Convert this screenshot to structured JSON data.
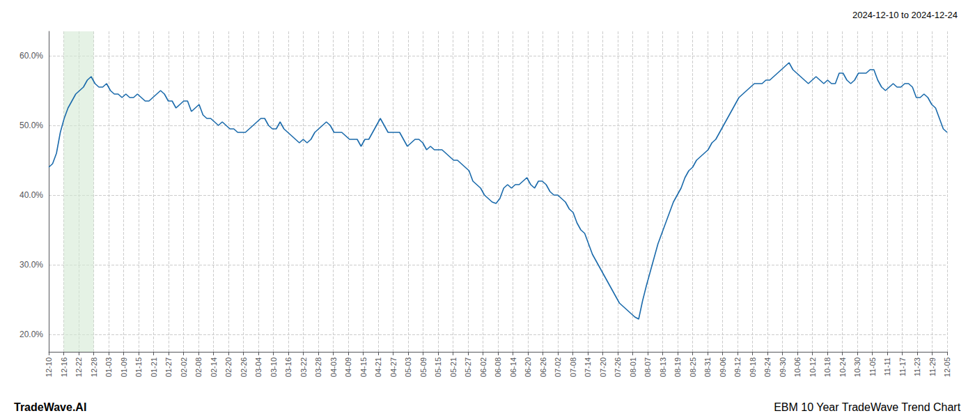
{
  "chart_data": {
    "type": "line",
    "title": "2024-12-10 to 2024-12-24",
    "annotations": [
      "TradeWave.AI",
      "EBM 10 Year TradeWave Trend Chart"
    ],
    "color": "#1a6aab",
    "grid": true,
    "shade": {
      "x": [
        1,
        3
      ],
      "color": "#d4e9d4"
    },
    "xlim": [
      0,
      60
    ],
    "xticks": [
      {
        "value": 0,
        "label": "12-10"
      },
      {
        "value": 1,
        "label": "12-16"
      },
      {
        "value": 2,
        "label": "12-22"
      },
      {
        "value": 3,
        "label": "12-28"
      },
      {
        "value": 4,
        "label": "01-03"
      },
      {
        "value": 5,
        "label": "01-09"
      },
      {
        "value": 6,
        "label": "01-15"
      },
      {
        "value": 7,
        "label": "01-21"
      },
      {
        "value": 8,
        "label": "01-27"
      },
      {
        "value": 9,
        "label": "02-02"
      },
      {
        "value": 10,
        "label": "02-08"
      },
      {
        "value": 11,
        "label": "02-14"
      },
      {
        "value": 12,
        "label": "02-20"
      },
      {
        "value": 13,
        "label": "02-26"
      },
      {
        "value": 14,
        "label": "03-04"
      },
      {
        "value": 15,
        "label": "03-10"
      },
      {
        "value": 16,
        "label": "03-16"
      },
      {
        "value": 17,
        "label": "03-22"
      },
      {
        "value": 18,
        "label": "03-28"
      },
      {
        "value": 19,
        "label": "04-03"
      },
      {
        "value": 20,
        "label": "04-09"
      },
      {
        "value": 21,
        "label": "04-15"
      },
      {
        "value": 22,
        "label": "04-21"
      },
      {
        "value": 23,
        "label": "04-27"
      },
      {
        "value": 24,
        "label": "05-03"
      },
      {
        "value": 25,
        "label": "05-09"
      },
      {
        "value": 26,
        "label": "05-15"
      },
      {
        "value": 27,
        "label": "05-21"
      },
      {
        "value": 28,
        "label": "05-27"
      },
      {
        "value": 29,
        "label": "06-02"
      },
      {
        "value": 30,
        "label": "06-08"
      },
      {
        "value": 31,
        "label": "06-14"
      },
      {
        "value": 32,
        "label": "06-20"
      },
      {
        "value": 33,
        "label": "06-26"
      },
      {
        "value": 34,
        "label": "07-02"
      },
      {
        "value": 35,
        "label": "07-08"
      },
      {
        "value": 36,
        "label": "07-14"
      },
      {
        "value": 37,
        "label": "07-20"
      },
      {
        "value": 38,
        "label": "07-26"
      },
      {
        "value": 39,
        "label": "08-01"
      },
      {
        "value": 40,
        "label": "08-07"
      },
      {
        "value": 41,
        "label": "08-13"
      },
      {
        "value": 42,
        "label": "08-19"
      },
      {
        "value": 43,
        "label": "08-25"
      },
      {
        "value": 44,
        "label": "08-31"
      },
      {
        "value": 45,
        "label": "09-06"
      },
      {
        "value": 46,
        "label": "09-12"
      },
      {
        "value": 47,
        "label": "09-18"
      },
      {
        "value": 48,
        "label": "09-24"
      },
      {
        "value": 49,
        "label": "09-30"
      },
      {
        "value": 50,
        "label": "10-06"
      },
      {
        "value": 51,
        "label": "10-12"
      },
      {
        "value": 52,
        "label": "10-18"
      },
      {
        "value": 53,
        "label": "10-24"
      },
      {
        "value": 54,
        "label": "10-30"
      },
      {
        "value": 55,
        "label": "11-05"
      },
      {
        "value": 56,
        "label": "11-11"
      },
      {
        "value": 57,
        "label": "11-17"
      },
      {
        "value": 58,
        "label": "11-23"
      },
      {
        "value": 59,
        "label": "11-29"
      },
      {
        "value": 60,
        "label": "12-05"
      }
    ],
    "ylim": [
      0.175,
      0.635
    ],
    "yticks": [
      {
        "value": 0.2,
        "label": "20.0%"
      },
      {
        "value": 0.3,
        "label": "30.0%"
      },
      {
        "value": 0.4,
        "label": "40.0%"
      },
      {
        "value": 0.5,
        "label": "50.0%"
      },
      {
        "value": 0.6,
        "label": "60.0%"
      }
    ],
    "values": [
      0.44,
      0.445,
      0.46,
      0.49,
      0.51,
      0.525,
      0.535,
      0.545,
      0.55,
      0.555,
      0.565,
      0.57,
      0.56,
      0.555,
      0.555,
      0.56,
      0.55,
      0.545,
      0.545,
      0.54,
      0.545,
      0.54,
      0.54,
      0.545,
      0.54,
      0.535,
      0.535,
      0.54,
      0.545,
      0.55,
      0.545,
      0.535,
      0.535,
      0.525,
      0.53,
      0.535,
      0.535,
      0.52,
      0.525,
      0.53,
      0.515,
      0.51,
      0.51,
      0.505,
      0.5,
      0.505,
      0.5,
      0.495,
      0.495,
      0.49,
      0.49,
      0.49,
      0.495,
      0.5,
      0.505,
      0.51,
      0.51,
      0.5,
      0.495,
      0.495,
      0.505,
      0.495,
      0.49,
      0.485,
      0.48,
      0.475,
      0.48,
      0.475,
      0.48,
      0.49,
      0.495,
      0.5,
      0.505,
      0.5,
      0.49,
      0.49,
      0.49,
      0.485,
      0.48,
      0.48,
      0.48,
      0.47,
      0.48,
      0.48,
      0.49,
      0.5,
      0.51,
      0.5,
      0.49,
      0.49,
      0.49,
      0.49,
      0.48,
      0.47,
      0.475,
      0.48,
      0.48,
      0.475,
      0.465,
      0.47,
      0.465,
      0.465,
      0.465,
      0.46,
      0.455,
      0.45,
      0.45,
      0.445,
      0.44,
      0.435,
      0.42,
      0.415,
      0.41,
      0.4,
      0.395,
      0.39,
      0.388,
      0.395,
      0.41,
      0.415,
      0.41,
      0.415,
      0.415,
      0.42,
      0.425,
      0.415,
      0.41,
      0.42,
      0.42,
      0.415,
      0.405,
      0.4,
      0.4,
      0.395,
      0.39,
      0.38,
      0.375,
      0.36,
      0.35,
      0.345,
      0.33,
      0.315,
      0.305,
      0.295,
      0.285,
      0.275,
      0.265,
      0.255,
      0.245,
      0.24,
      0.235,
      0.23,
      0.225,
      0.222,
      0.248,
      0.27,
      0.29,
      0.31,
      0.33,
      0.345,
      0.36,
      0.375,
      0.39,
      0.4,
      0.41,
      0.425,
      0.435,
      0.44,
      0.45,
      0.455,
      0.46,
      0.465,
      0.475,
      0.48,
      0.49,
      0.5,
      0.51,
      0.52,
      0.53,
      0.54,
      0.545,
      0.55,
      0.555,
      0.56,
      0.56,
      0.56,
      0.565,
      0.565,
      0.57,
      0.575,
      0.58,
      0.585,
      0.59,
      0.58,
      0.575,
      0.57,
      0.565,
      0.56,
      0.565,
      0.57,
      0.565,
      0.56,
      0.565,
      0.56,
      0.56,
      0.575,
      0.575,
      0.565,
      0.56,
      0.565,
      0.575,
      0.575,
      0.575,
      0.58,
      0.58,
      0.565,
      0.555,
      0.55,
      0.555,
      0.56,
      0.555,
      0.555,
      0.56,
      0.56,
      0.555,
      0.54,
      0.54,
      0.545,
      0.54,
      0.53,
      0.525,
      0.51,
      0.495,
      0.49
    ]
  }
}
